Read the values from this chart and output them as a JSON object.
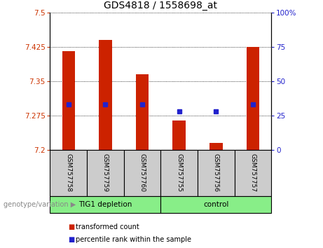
{
  "title": "GDS4818 / 1558698_at",
  "samples": [
    "GSM757758",
    "GSM757759",
    "GSM757760",
    "GSM757755",
    "GSM757756",
    "GSM757757"
  ],
  "bar_values": [
    7.415,
    7.44,
    7.365,
    7.265,
    7.215,
    7.425
  ],
  "bar_base": 7.2,
  "blue_dot_values": [
    33,
    33,
    33,
    28,
    28,
    33
  ],
  "ylim": [
    7.2,
    7.5
  ],
  "y2lim": [
    0,
    100
  ],
  "yticks": [
    7.2,
    7.275,
    7.35,
    7.425,
    7.5
  ],
  "ytick_labels": [
    "7.2",
    "7.275",
    "7.35",
    "7.425",
    "7.5"
  ],
  "y2ticks": [
    0,
    25,
    50,
    75,
    100
  ],
  "y2tick_labels": [
    "0",
    "25",
    "50",
    "75",
    "100%"
  ],
  "bar_color": "#cc2200",
  "dot_color": "#2222cc",
  "grid_color": "#000000",
  "group1_label": "TIG1 depletion",
  "group2_label": "control",
  "group1_color": "#88ee88",
  "group2_color": "#88ee88",
  "group_bg_color": "#cccccc",
  "legend_bar_label": "transformed count",
  "legend_dot_label": "percentile rank within the sample",
  "left_label": "genotype/variation",
  "left_color": "#888888",
  "xlabel_color": "#cc3300",
  "ylabel_color": "#2222cc",
  "bg_plot": "#ffffff",
  "tick_label_fontsize": 7.5,
  "title_fontsize": 10,
  "bar_width": 0.35
}
